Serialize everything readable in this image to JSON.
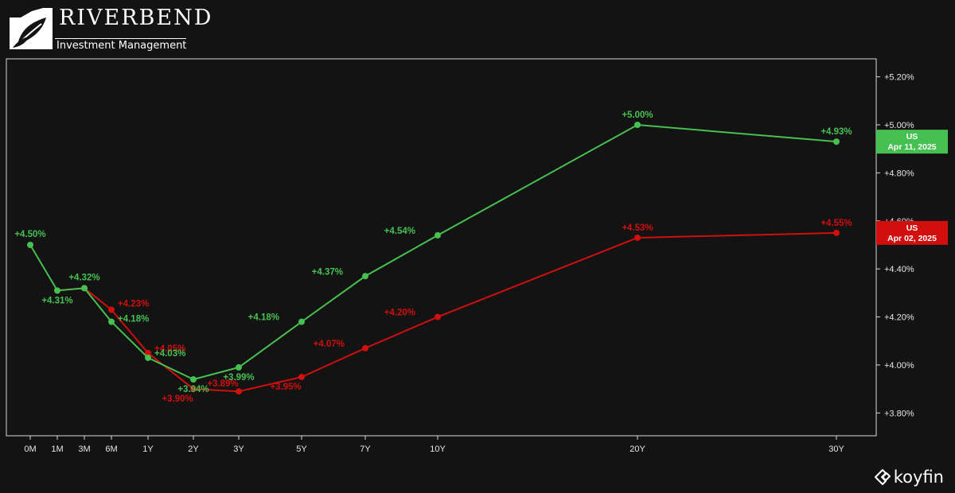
{
  "branding": {
    "name": "RIVERBEND",
    "tagline": "Investment Management",
    "watermark": "koyfin"
  },
  "chart_data": {
    "type": "line",
    "title": "",
    "xlabel": "",
    "ylabel": "",
    "categories": [
      "0M",
      "1M",
      "3M",
      "6M",
      "1Y",
      "2Y",
      "3Y",
      "5Y",
      "7Y",
      "10Y",
      "20Y",
      "30Y"
    ],
    "maturity_years": [
      0,
      0.0833,
      0.25,
      0.5,
      1,
      2,
      3,
      5,
      7,
      10,
      20,
      30
    ],
    "ylim": [
      3.72,
      5.27
    ],
    "yticks": [
      3.8,
      4.0,
      4.2,
      4.4,
      4.6,
      4.8,
      5.0,
      5.2
    ],
    "ytick_labels": [
      "+3.80%",
      "+4.00%",
      "+4.20%",
      "+4.40%",
      "+4.60%",
      "+4.80%",
      "+5.00%",
      "+5.20%"
    ],
    "y_axis_position": "right",
    "grid": false,
    "series": [
      {
        "name": "US Apr 02, 2025",
        "legend_line1": "US",
        "legend_line2": "Apr 02, 2025",
        "color": "#d10f0f",
        "values": [
          null,
          4.31,
          4.32,
          4.23,
          4.05,
          3.9,
          3.89,
          3.95,
          4.07,
          4.2,
          4.53,
          4.55
        ],
        "labels": [
          "",
          "",
          "",
          "+4.23%",
          "+4.05%",
          "+3.90%",
          "+3.89%",
          "+3.95%",
          "+4.07%",
          "+4.20%",
          "+4.53%",
          "+4.55%"
        ]
      },
      {
        "name": "US Apr 11, 2025",
        "legend_line1": "US",
        "legend_line2": "Apr 11, 2025",
        "color": "#46c050",
        "values": [
          4.5,
          4.31,
          4.32,
          4.18,
          4.03,
          3.94,
          3.99,
          4.18,
          4.37,
          4.54,
          5.0,
          4.93
        ],
        "labels": [
          "+4.50%",
          "+4.31%",
          "+4.32%",
          "+4.18%",
          "+4.03%",
          "+3.94%",
          "+3.99%",
          "+4.18%",
          "+4.37%",
          "+4.54%",
          "+5.00%",
          "+4.93%"
        ]
      }
    ]
  }
}
